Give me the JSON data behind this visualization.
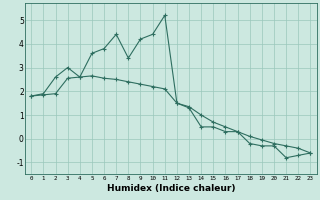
{
  "xlabel": "Humidex (Indice chaleur)",
  "bg_color": "#cce8e0",
  "line_color": "#2e6e60",
  "xlim": [
    -0.5,
    23.5
  ],
  "ylim": [
    -1.5,
    5.7
  ],
  "yticks": [
    -1,
    0,
    1,
    2,
    3,
    4,
    5
  ],
  "xticks": [
    0,
    1,
    2,
    3,
    4,
    5,
    6,
    7,
    8,
    9,
    10,
    11,
    12,
    13,
    14,
    15,
    16,
    17,
    18,
    19,
    20,
    21,
    22,
    23
  ],
  "line1_x": [
    0,
    1,
    2,
    3,
    4,
    5,
    6,
    7,
    8,
    9,
    10,
    11,
    12,
    13,
    14,
    15,
    16,
    17,
    18,
    19,
    20,
    21,
    22,
    23
  ],
  "line1_y": [
    1.8,
    1.9,
    2.6,
    3.0,
    2.6,
    3.6,
    3.8,
    4.4,
    3.4,
    4.2,
    4.4,
    5.2,
    1.5,
    1.3,
    0.5,
    0.5,
    0.3,
    0.3,
    -0.2,
    -0.3,
    -0.3,
    -0.8,
    -0.7,
    -0.6
  ],
  "line2_x": [
    0,
    1,
    2,
    3,
    4,
    5,
    6,
    7,
    8,
    9,
    10,
    11,
    12,
    13,
    14,
    15,
    16,
    17,
    18,
    19,
    20,
    21,
    22,
    23
  ],
  "line2_y": [
    1.8,
    1.85,
    1.9,
    2.55,
    2.6,
    2.65,
    2.55,
    2.5,
    2.4,
    2.3,
    2.2,
    2.1,
    1.5,
    1.35,
    1.0,
    0.7,
    0.5,
    0.3,
    0.1,
    -0.05,
    -0.2,
    -0.3,
    -0.4,
    -0.6
  ]
}
